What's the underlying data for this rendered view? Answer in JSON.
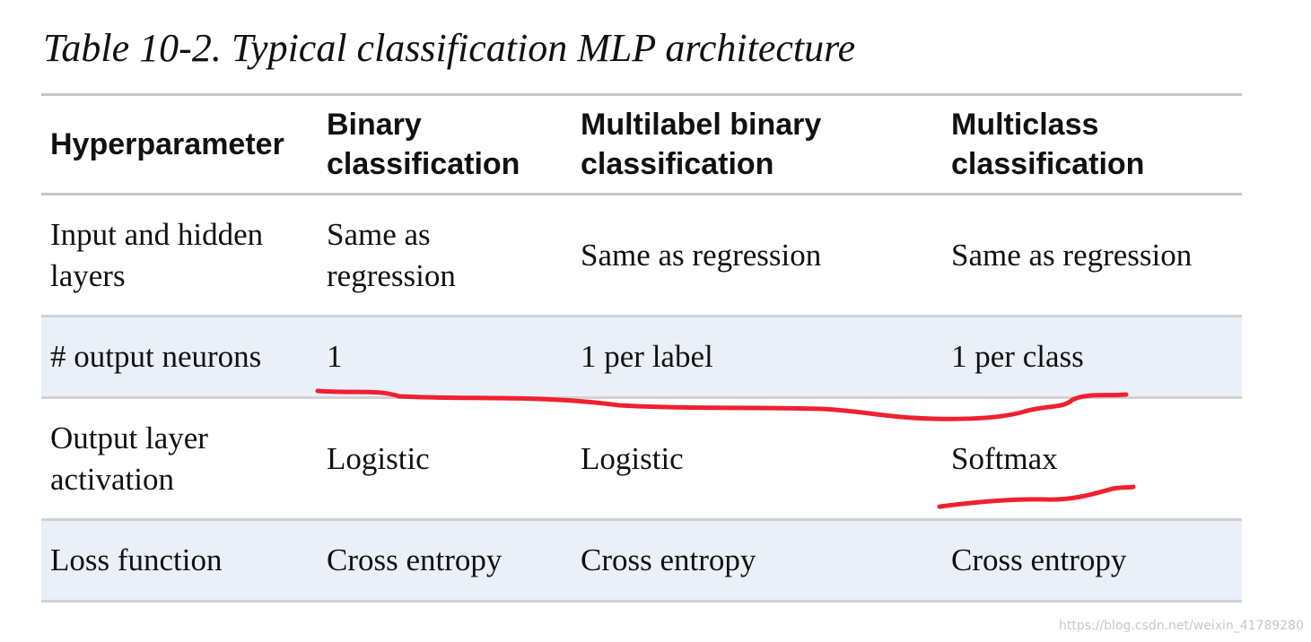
{
  "caption": "Table 10-2. Typical classification MLP architecture",
  "table": {
    "headers": [
      "Hyperparameter",
      "Binary classification",
      "Multilabel binary classification",
      "Multiclass classification"
    ],
    "rows": [
      [
        "Input and hidden layers",
        "Same as regression",
        "Same as regression",
        "Same as regression"
      ],
      [
        "# output neurons",
        "1",
        "1 per label",
        "1 per class"
      ],
      [
        "Output layer activation",
        "Logistic",
        "Logistic",
        "Softmax"
      ],
      [
        "Loss function",
        "Cross entropy",
        "Cross entropy",
        "Cross entropy"
      ]
    ]
  },
  "annotations": {
    "ink_color": "#f02030",
    "marks": [
      "underline-output-neurons-row",
      "underline-softmax"
    ]
  },
  "watermark": "https://blog.csdn.net/weixin_41789280"
}
